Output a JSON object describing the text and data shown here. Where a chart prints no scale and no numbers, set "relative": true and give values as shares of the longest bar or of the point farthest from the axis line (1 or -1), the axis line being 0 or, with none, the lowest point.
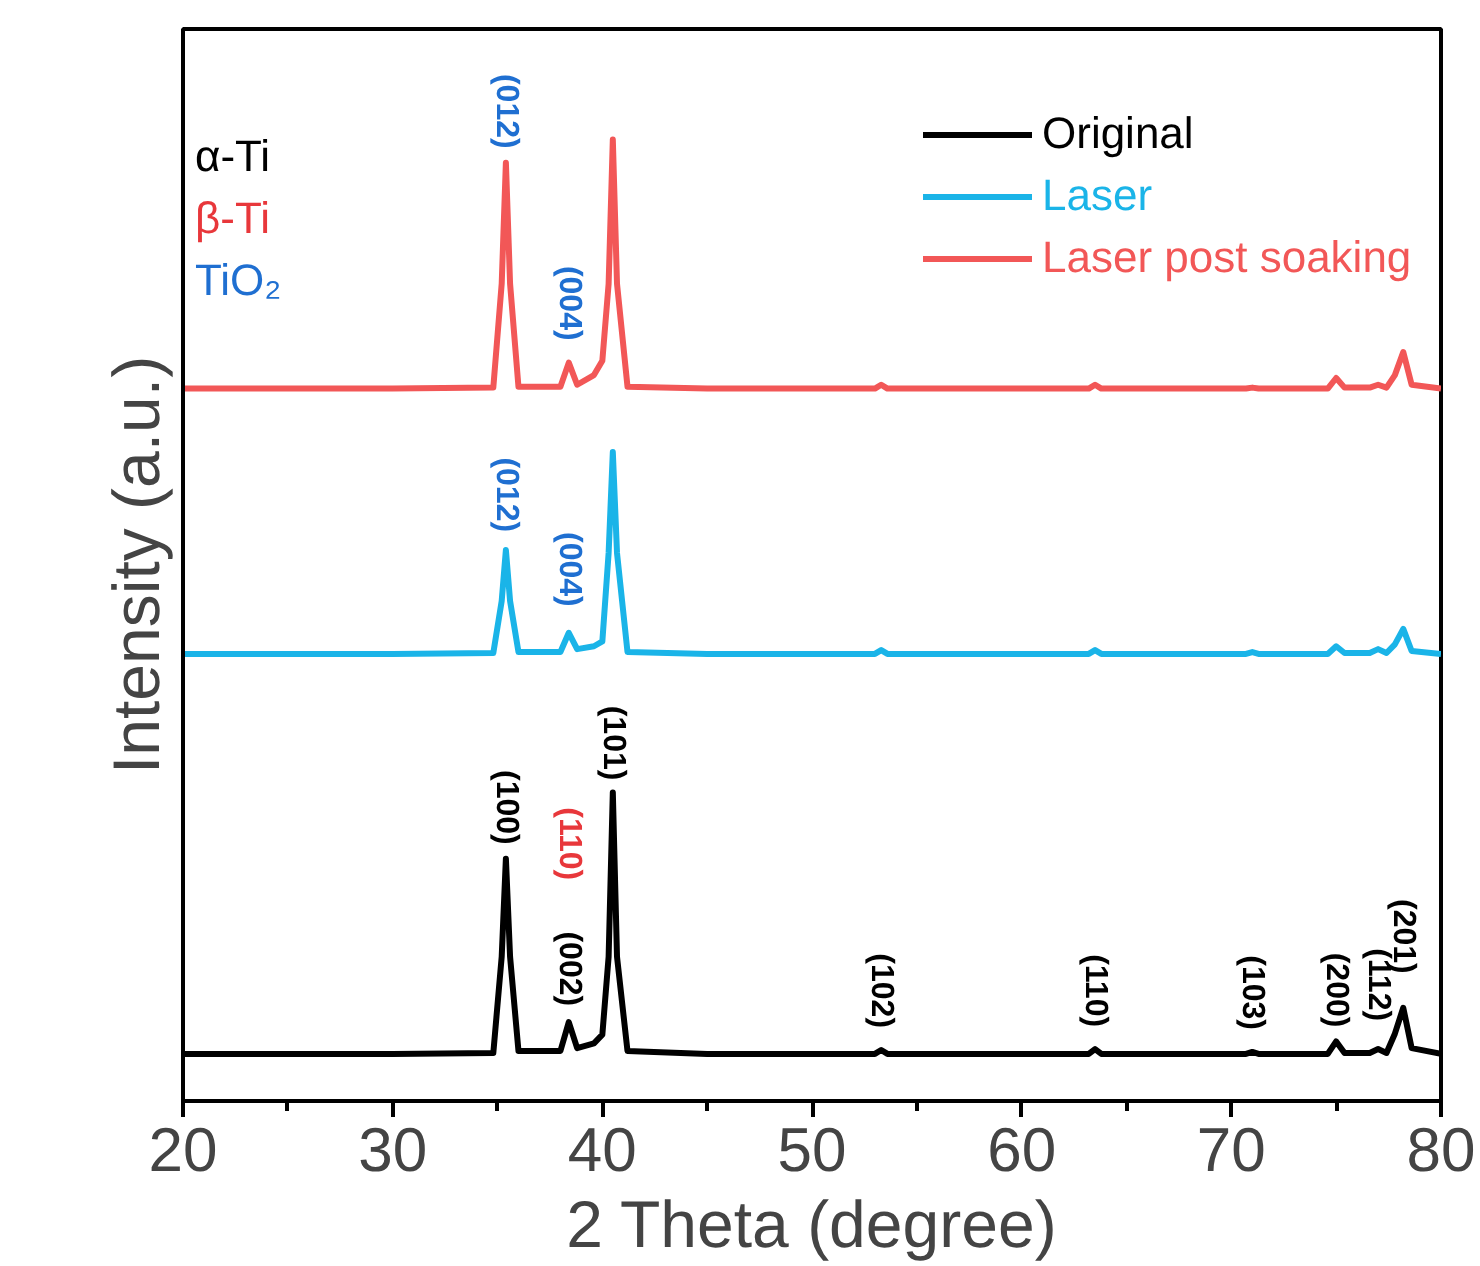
{
  "chart_data": {
    "type": "line",
    "relative": true,
    "xlabel": "2 Theta (degree)",
    "ylabel": "Intensity (a.u.)",
    "xlim": [
      20,
      80
    ],
    "xticks": [
      20,
      {
        "value": 25,
        "label": null
      },
      30,
      {
        "value": 35,
        "label": null
      },
      40,
      {
        "value": 45,
        "label": null
      },
      50,
      {
        "value": 55,
        "label": null
      },
      60,
      {
        "value": 65,
        "label": null
      },
      70,
      {
        "value": 75,
        "label": null
      },
      80
    ],
    "x": [
      20,
      30,
      34.8,
      35.2,
      35.4,
      35.6,
      36,
      38.0,
      38.4,
      38.8,
      39.6,
      40.0,
      40.3,
      40.5,
      40.7,
      41.2,
      45,
      53.0,
      53.3,
      53.6,
      63.2,
      63.5,
      63.8,
      70.7,
      71,
      71.3,
      74.6,
      75,
      75.4,
      76.6,
      77,
      77.4,
      77.8,
      78.2,
      78.6,
      80
    ],
    "series": [
      {
        "name": "Original",
        "color": "#000000",
        "values": [
          0.049,
          0.049,
          0.05,
          0.15,
          0.252,
          0.15,
          0.052,
          0.052,
          0.082,
          0.055,
          0.06,
          0.069,
          0.15,
          0.321,
          0.15,
          0.052,
          0.049,
          0.049,
          0.053,
          0.049,
          0.049,
          0.054,
          0.049,
          0.049,
          0.051,
          0.049,
          0.049,
          0.062,
          0.05,
          0.05,
          0.054,
          0.05,
          0.07,
          0.097,
          0.055,
          0.049
        ]
      },
      {
        "name": "Laser",
        "color": "#1ab4e8",
        "values": [
          0.465,
          0.465,
          0.466,
          0.52,
          0.573,
          0.52,
          0.467,
          0.467,
          0.487,
          0.47,
          0.473,
          0.478,
          0.57,
          0.675,
          0.57,
          0.467,
          0.465,
          0.465,
          0.469,
          0.465,
          0.465,
          0.469,
          0.465,
          0.465,
          0.467,
          0.465,
          0.465,
          0.473,
          0.466,
          0.466,
          0.47,
          0.466,
          0.475,
          0.491,
          0.468,
          0.465
        ]
      },
      {
        "name": "Laser post soaking",
        "color": "#f25757",
        "values": [
          0.741,
          0.741,
          0.742,
          0.85,
          0.976,
          0.85,
          0.743,
          0.743,
          0.768,
          0.745,
          0.755,
          0.77,
          0.85,
          1.0,
          0.85,
          0.743,
          0.741,
          0.741,
          0.745,
          0.741,
          0.741,
          0.745,
          0.741,
          0.741,
          0.742,
          0.741,
          0.741,
          0.752,
          0.742,
          0.742,
          0.745,
          0.742,
          0.755,
          0.779,
          0.745,
          0.741
        ]
      }
    ],
    "legend": "top right",
    "line_style": "solid",
    "grid": false,
    "annotations": [
      "α-Ti",
      "β-Ti",
      "TiO₂",
      {
        "text": "(100)",
        "x": 35.4,
        "y": 0.252
      },
      {
        "text": "(002)",
        "x": 38.4,
        "y": 0.082
      },
      "(110)",
      {
        "text": "(101)",
        "x": 40.5,
        "y": 0.321
      },
      {
        "text": "(102)",
        "x": 53.3,
        "y": 0.053
      },
      {
        "text": "(110)",
        "x": 63.5,
        "y": 0.054
      },
      {
        "text": "(103)",
        "x": 71,
        "y": 0.051
      },
      {
        "text": "(200)",
        "x": 75,
        "y": 0.062
      },
      {
        "text": "(112)",
        "x": 77,
        "y": 0.054
      },
      {
        "text": "(201)",
        "x": 78.2,
        "y": 0.097
      },
      {
        "text": "(012)",
        "x": 35.4,
        "y": 0.573
      },
      {
        "text": "(004)",
        "x": 38.4,
        "y": 0.487
      },
      {
        "text": "(012)",
        "x": 35.4,
        "y": 0.976
      },
      {
        "text": "(004)",
        "x": 38.4,
        "y": 0.768
      }
    ]
  }
}
